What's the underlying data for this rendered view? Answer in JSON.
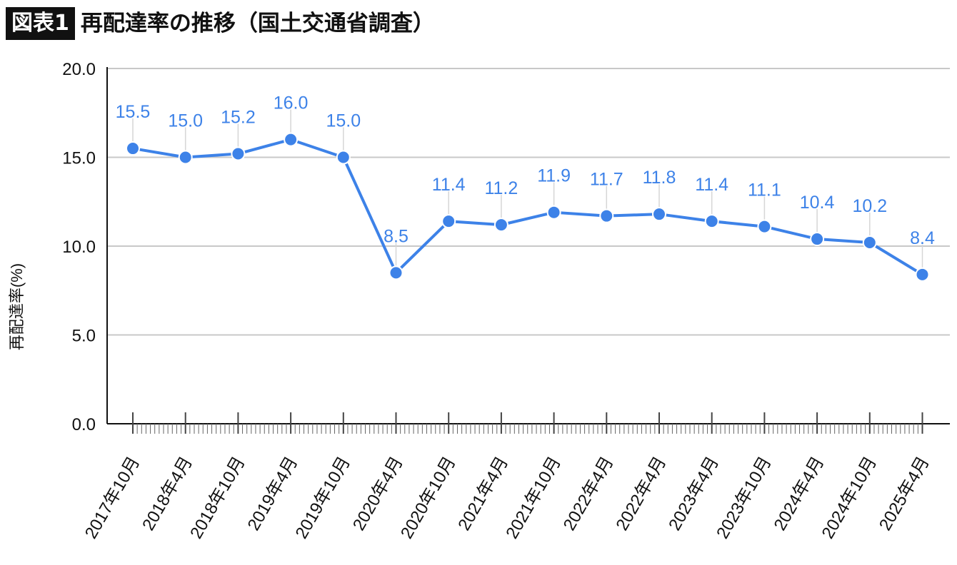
{
  "header": {
    "badge": "図表1",
    "title": "再配達率の推移（国土交通省調査）"
  },
  "colors": {
    "series": "#3d82e8",
    "label": "#3d82e8",
    "grid": "#c8c8c8",
    "axis": "#111111"
  },
  "chart_data": {
    "type": "line",
    "title": "",
    "xlabel": "",
    "ylabel": "再配達率(%)",
    "ylim": [
      0,
      20
    ],
    "yticks": [
      "0.0",
      "5.0",
      "10.0",
      "15.0",
      "20.0"
    ],
    "grid": true,
    "categories": [
      "2017年10月",
      "2018年4月",
      "2018年10月",
      "2019年4月",
      "2019年10月",
      "2020年4月",
      "2020年10月",
      "2021年4月",
      "2021年10月",
      "2022年4月",
      "2022年4月",
      "2023年4月",
      "2023年10月",
      "2024年4月",
      "2024年10月",
      "2025年4月"
    ],
    "values": [
      15.5,
      15.0,
      15.2,
      16.0,
      15.0,
      8.5,
      11.4,
      11.2,
      11.9,
      11.7,
      11.8,
      11.4,
      11.1,
      10.4,
      10.2,
      8.4
    ],
    "data_labels": [
      "15.5",
      "15.0",
      "15.2",
      "16.0",
      "15.0",
      "8.5",
      "11.4",
      "11.2",
      "11.9",
      "11.7",
      "11.8",
      "11.4",
      "11.1",
      "10.4",
      "10.2",
      "8.4"
    ]
  }
}
